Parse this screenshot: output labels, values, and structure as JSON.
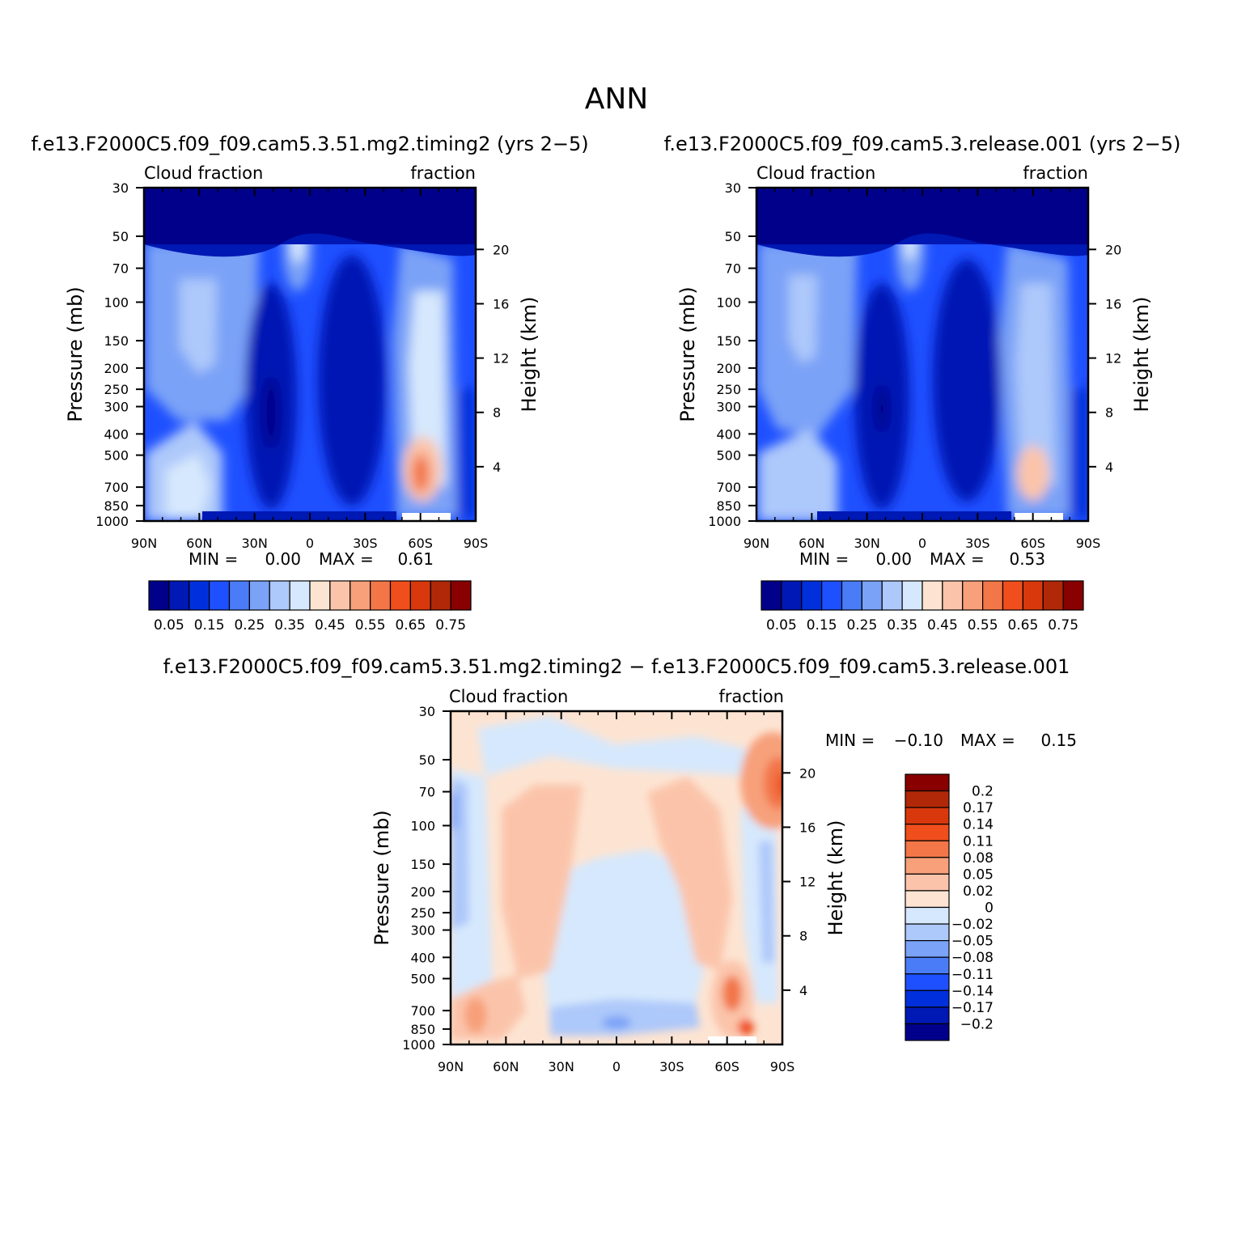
{
  "figure": {
    "title": "ANN"
  },
  "chart_data": [
    {
      "type": "heatmap",
      "title": "f.e13.F2000C5.f09_f09.cam5.3.51.mg2.timing2 (yrs 2−5)",
      "left_label": "Cloud fraction",
      "right_label": "fraction",
      "xlabel": "",
      "ylabel": "Pressure (mb)",
      "y2label": "Height (km)",
      "x_ticks": [
        "90N",
        "60N",
        "30N",
        "0",
        "30S",
        "60S",
        "90S"
      ],
      "x_tick_values": [
        90,
        60,
        30,
        0,
        -30,
        -60,
        -90
      ],
      "y_ticks": [
        "30",
        "50",
        "70",
        "100",
        "150",
        "200",
        "250",
        "300",
        "400",
        "500",
        "700",
        "850",
        "1000"
      ],
      "y_tick_values": [
        30,
        50,
        70,
        100,
        150,
        200,
        250,
        300,
        400,
        500,
        700,
        850,
        1000
      ],
      "y2_ticks": [
        "20",
        "16",
        "12",
        "8",
        "4"
      ],
      "y2_tick_values": [
        20,
        16,
        12,
        8,
        4
      ],
      "xlim": [
        90,
        -90
      ],
      "ylim": [
        1000,
        30
      ],
      "y_scale": "log",
      "grid": false,
      "stats": {
        "min_label": "MIN =",
        "min": "0.00",
        "max_label": "MAX =",
        "max": "0.61"
      },
      "colorbar": {
        "orientation": "horizontal",
        "levels": [
          0.05,
          0.1,
          0.15,
          0.2,
          0.25,
          0.3,
          0.35,
          0.4,
          0.45,
          0.5,
          0.55,
          0.6,
          0.65,
          0.7,
          0.75
        ],
        "labels": [
          "0.05",
          "0.15",
          "0.25",
          "0.35",
          "0.45",
          "0.55",
          "0.65",
          "0.75"
        ],
        "colors": [
          "#00008a",
          "#0018b4",
          "#0030dc",
          "#1e50ff",
          "#4a7cf7",
          "#7aa2f7",
          "#adc8fa",
          "#d6e8fd",
          "#fde4d2",
          "#fbc4aa",
          "#f7a07a",
          "#f27648",
          "#f04e1c",
          "#d8380c",
          "#b02808",
          "#880000"
        ]
      }
    },
    {
      "type": "heatmap",
      "title": "f.e13.F2000C5.f09_f09.cam5.3.release.001 (yrs 2−5)",
      "left_label": "Cloud fraction",
      "right_label": "fraction",
      "xlabel": "",
      "ylabel": "Pressure (mb)",
      "y2label": "Height (km)",
      "x_ticks": [
        "90N",
        "60N",
        "30N",
        "0",
        "30S",
        "60S",
        "90S"
      ],
      "x_tick_values": [
        90,
        60,
        30,
        0,
        -30,
        -60,
        -90
      ],
      "y_ticks": [
        "30",
        "50",
        "70",
        "100",
        "150",
        "200",
        "250",
        "300",
        "400",
        "500",
        "700",
        "850",
        "1000"
      ],
      "y_tick_values": [
        30,
        50,
        70,
        100,
        150,
        200,
        250,
        300,
        400,
        500,
        700,
        850,
        1000
      ],
      "y2_ticks": [
        "20",
        "16",
        "12",
        "8",
        "4"
      ],
      "y2_tick_values": [
        20,
        16,
        12,
        8,
        4
      ],
      "xlim": [
        90,
        -90
      ],
      "ylim": [
        1000,
        30
      ],
      "y_scale": "log",
      "grid": false,
      "stats": {
        "min_label": "MIN =",
        "min": "0.00",
        "max_label": "MAX =",
        "max": "0.53"
      },
      "colorbar": {
        "orientation": "horizontal",
        "levels": [
          0.05,
          0.1,
          0.15,
          0.2,
          0.25,
          0.3,
          0.35,
          0.4,
          0.45,
          0.5,
          0.55,
          0.6,
          0.65,
          0.7,
          0.75
        ],
        "labels": [
          "0.05",
          "0.15",
          "0.25",
          "0.35",
          "0.45",
          "0.55",
          "0.65",
          "0.75"
        ],
        "colors": [
          "#00008a",
          "#0018b4",
          "#0030dc",
          "#1e50ff",
          "#4a7cf7",
          "#7aa2f7",
          "#adc8fa",
          "#d6e8fd",
          "#fde4d2",
          "#fbc4aa",
          "#f7a07a",
          "#f27648",
          "#f04e1c",
          "#d8380c",
          "#b02808",
          "#880000"
        ]
      }
    },
    {
      "type": "heatmap",
      "title": "f.e13.F2000C5.f09_f09.cam5.3.51.mg2.timing2 − f.e13.F2000C5.f09_f09.cam5.3.release.001",
      "left_label": "Cloud fraction",
      "right_label": "fraction",
      "xlabel": "",
      "ylabel": "Pressure (mb)",
      "y2label": "Height (km)",
      "x_ticks": [
        "90N",
        "60N",
        "30N",
        "0",
        "30S",
        "60S",
        "90S"
      ],
      "x_tick_values": [
        90,
        60,
        30,
        0,
        -30,
        -60,
        -90
      ],
      "y_ticks": [
        "30",
        "50",
        "70",
        "100",
        "150",
        "200",
        "250",
        "300",
        "400",
        "500",
        "700",
        "850",
        "1000"
      ],
      "y_tick_values": [
        30,
        50,
        70,
        100,
        150,
        200,
        250,
        300,
        400,
        500,
        700,
        850,
        1000
      ],
      "y2_ticks": [
        "20",
        "16",
        "12",
        "8",
        "4"
      ],
      "y2_tick_values": [
        20,
        16,
        12,
        8,
        4
      ],
      "xlim": [
        90,
        -90
      ],
      "ylim": [
        1000,
        30
      ],
      "y_scale": "log",
      "grid": false,
      "stats": {
        "min_label": "MIN =",
        "min": "−0.10",
        "max_label": "MAX =",
        "max": "0.15"
      },
      "colorbar": {
        "orientation": "vertical",
        "levels": [
          0.2,
          0.17,
          0.14,
          0.11,
          0.08,
          0.05,
          0.02,
          0,
          -0.02,
          -0.05,
          -0.08,
          -0.11,
          -0.14,
          -0.17,
          -0.2
        ],
        "labels": [
          "0.2",
          "0.17",
          "0.14",
          "0.11",
          "0.08",
          "0.05",
          "0.02",
          "0",
          "−0.02",
          "−0.05",
          "−0.08",
          "−0.11",
          "−0.14",
          "−0.17",
          "−0.2"
        ],
        "colors": [
          "#880000",
          "#b02808",
          "#d8380c",
          "#f04e1c",
          "#f27648",
          "#f7a07a",
          "#fbc4aa",
          "#fde4d2",
          "#d6e8fd",
          "#adc8fa",
          "#7aa2f7",
          "#4a7cf7",
          "#1e50ff",
          "#0030dc",
          "#0018b4",
          "#00008a"
        ]
      }
    }
  ]
}
